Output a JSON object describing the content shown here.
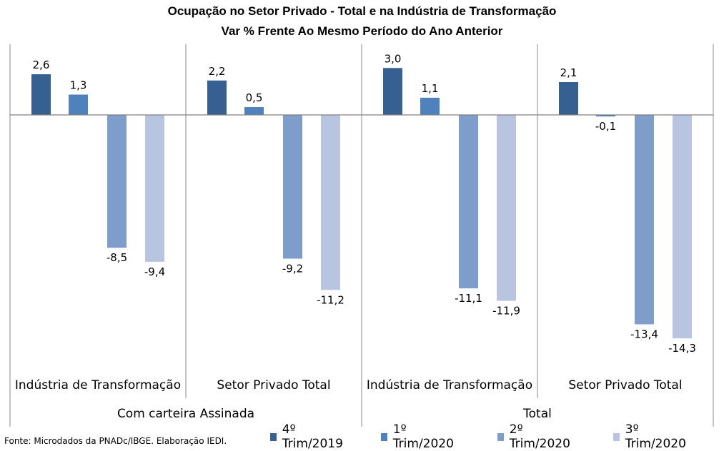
{
  "title": "Ocupação no Setor Privado - Total e na Indústria de Transformação",
  "subtitle": "Var % Frente Ao Mesmo Período do Ano Anterior",
  "source": "Fonte: Microdados da PNADc/IBGE. Elaboração IEDI.",
  "chart_data": {
    "type": "bar",
    "categories": [
      "Indústria de Transformação",
      "Setor Privado Total",
      "Indústria de Transformação",
      "Setor Privado Total"
    ],
    "groups": [
      {
        "label": "Com carteira Assinada",
        "span": [
          0,
          1
        ]
      },
      {
        "label": "Total",
        "span": [
          2,
          3
        ]
      }
    ],
    "series": [
      {
        "name": "4º Trim/2019",
        "color": "#376092",
        "values": [
          2.6,
          2.2,
          3.0,
          2.1
        ],
        "labels": [
          "2,6",
          "2,2",
          "3,0",
          "2,1"
        ]
      },
      {
        "name": "1º Trim/2020",
        "color": "#4f81bd",
        "values": [
          1.3,
          0.5,
          1.1,
          -0.1
        ],
        "labels": [
          "1,3",
          "0,5",
          "1,1",
          "-0,1"
        ]
      },
      {
        "name": "2º Trim/2020",
        "color": "#7f9dcb",
        "values": [
          -8.5,
          -9.2,
          -11.1,
          -13.4
        ],
        "labels": [
          "-8,5",
          "-9,2",
          "-11,1",
          "-13,4"
        ]
      },
      {
        "name": "3º Trim/2020",
        "color": "#b9c5e0",
        "values": [
          -9.4,
          -11.2,
          -11.9,
          -14.3
        ],
        "labels": [
          "-9,4",
          "-11,2",
          "-11,9",
          "-14,3"
        ]
      }
    ],
    "legend_position": "bottom-right",
    "grid": false
  }
}
